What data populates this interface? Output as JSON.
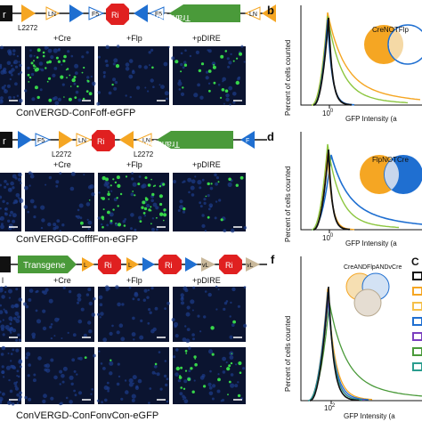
{
  "panels": {
    "a": {
      "construct_tag": "r",
      "construct_label": "Transgene",
      "element_labels": [
        "LN",
        "F5",
        "Ri",
        "F5",
        "LN"
      ],
      "sub_label": "L2272",
      "conditions": [
        "+Cre",
        "+Flp",
        "+pDIRE"
      ],
      "caption": "ConVERGD-ConFoff-eGFP"
    },
    "c": {
      "construct_tag": "r",
      "construct_label": "Transgene",
      "element_labels": [
        "F5",
        "LN",
        "Ri",
        "LN",
        "F"
      ],
      "sub_labels": [
        "L2272",
        "L2272"
      ],
      "conditions": [
        "+Cre",
        "+Flp",
        "+pDIRE"
      ],
      "caption": "ConVERGD-CofffFon-eGFP"
    },
    "e": {
      "construct_label": "Transgene",
      "element_labels": [
        "L",
        "Ri",
        "L",
        "Ri",
        "vL",
        "Ri",
        "vL"
      ],
      "conditions": [
        "l",
        "+Cre",
        "+Flp",
        "+pDIRE"
      ],
      "caption": "ConVERGD-ConFonvCon-eGFP"
    }
  },
  "charts": {
    "b": {
      "letter": "b",
      "ylabel": "Percent of cells counted",
      "xlabel": "GFP Intensity (a",
      "logic_label": "CreNOTFlp",
      "tick_label": "10",
      "tick_exp": "0"
    },
    "d": {
      "letter": "d",
      "ylabel": "Percent of cells counted",
      "xlabel": "GFP Intensity (a",
      "logic_label": "FlpNOTCre",
      "tick_label": "10",
      "tick_exp": "0"
    },
    "f": {
      "letter": "f",
      "ylabel": "Percent of cells counted",
      "xlabel": "GFP Intensity (a",
      "logic_label": "CreANDFlpANDvCre",
      "tick_label": "10",
      "tick_exp": "2",
      "legend_letter": "C"
    }
  },
  "colors": {
    "dark_bg": "#0b1430",
    "gfp_green": "#37d64a",
    "orange": "#f5a623",
    "blue": "#1f6fd1",
    "red": "#e02020",
    "green": "#4a9a3a",
    "olive": "#8cc63f",
    "black": "#111111",
    "teal": "#2a9d8f",
    "purple": "#7b3fbf"
  }
}
